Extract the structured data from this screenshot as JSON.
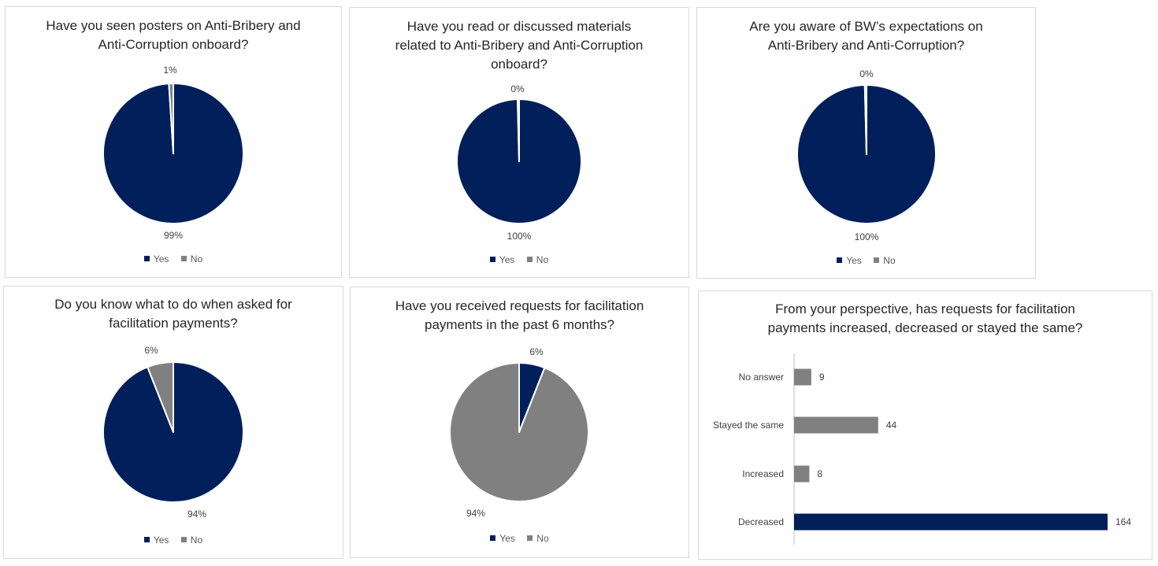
{
  "colors": {
    "yes": "#001f5b",
    "no": "#808080"
  },
  "chart_data": [
    {
      "type": "pie",
      "title": [
        "Have you seen posters on Anti-Bribery and",
        "Anti-Corruption onboard?"
      ],
      "categories": [
        "Yes",
        "No"
      ],
      "values": [
        99,
        1
      ],
      "labels": [
        "99%",
        "1%"
      ],
      "legend": "bottom"
    },
    {
      "type": "pie",
      "title": [
        "Have you read or discussed materials",
        "related to Anti-Bribery and Anti-Corruption",
        "onboard?"
      ],
      "categories": [
        "Yes",
        "No"
      ],
      "values": [
        99.6,
        0.4
      ],
      "labels": [
        "100%",
        "0%"
      ],
      "legend": "bottom"
    },
    {
      "type": "pie",
      "title": [
        "Are you aware of BW’s expectations on",
        "Anti-Bribery and Anti-Corruption?"
      ],
      "categories": [
        "Yes",
        "No"
      ],
      "values": [
        99.6,
        0.4
      ],
      "labels": [
        "100%",
        "0%"
      ],
      "legend": "bottom"
    },
    {
      "type": "pie",
      "title": [
        "Do you know what to do when asked for",
        "facilitation payments?"
      ],
      "categories": [
        "Yes",
        "No"
      ],
      "values": [
        94,
        6
      ],
      "labels": [
        "94%",
        "6%"
      ],
      "legend": "bottom"
    },
    {
      "type": "pie",
      "title": [
        "Have you received requests for facilitation",
        "payments in the past 6 months?"
      ],
      "categories": [
        "Yes",
        "No"
      ],
      "values": [
        6,
        94
      ],
      "labels": [
        "6%",
        "94%"
      ],
      "legend": "bottom"
    },
    {
      "type": "bar",
      "orientation": "horizontal",
      "title": [
        "From your perspective, has requests for facilitation",
        "payments increased, decreased or stayed the same?"
      ],
      "categories": [
        "No answer",
        "Stayed the same",
        "Increased",
        "Decreased"
      ],
      "values": [
        9,
        44,
        8,
        164
      ],
      "highlight": "Decreased"
    }
  ]
}
